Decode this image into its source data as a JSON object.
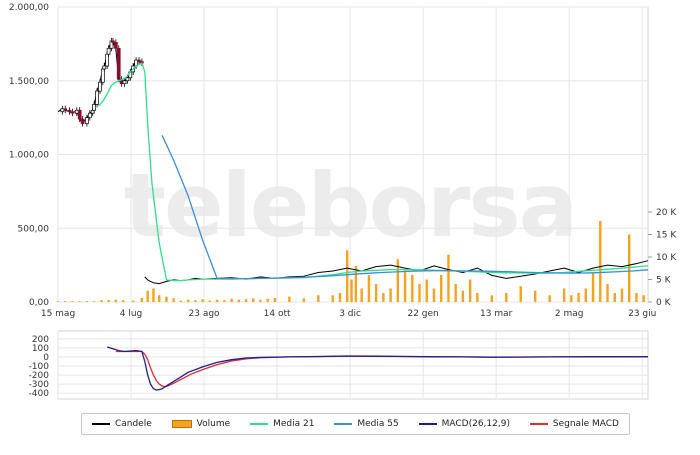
{
  "watermark": "teleborsa",
  "colors": {
    "candle_line": "#000000",
    "candle_down": "#8b0c2a",
    "volume": "#f7a21c",
    "ma21": "#2ee08a",
    "ma55": "#3a8fdb",
    "macd": "#1c1f8c",
    "signal": "#e02a36",
    "grid": "#e6e6e6",
    "watermark": "#ececec"
  },
  "chart_data": [
    {
      "type": "line",
      "panel": "price",
      "x_tick_labels": [
        "15 mag",
        "4 lug",
        "23 ago",
        "14 ott",
        "3 dic",
        "22 gen",
        "13 mar",
        "2 mag",
        "23 giu"
      ],
      "y_tick_labels": [
        "0,00",
        "500,00",
        "1.000,00",
        "1.500,00",
        "2.000,00"
      ],
      "y_ticks": [
        0,
        500,
        1000,
        1500,
        2000
      ],
      "ylim": [
        0,
        2000
      ],
      "volume_axis": {
        "tick_labels": [
          "0 K",
          "5 K",
          "10 K",
          "15 K",
          "20 K"
        ],
        "ticks": [
          0,
          5000,
          10000,
          15000,
          20000
        ],
        "ylim": [
          0,
          20000
        ]
      },
      "x_range_days": [
        0,
        408
      ],
      "grid": true,
      "series": [
        {
          "name": "Candele",
          "kind": "close",
          "x": [
            0,
            3,
            5,
            8,
            10,
            13,
            15,
            17,
            20,
            22,
            24,
            25,
            27,
            29,
            31,
            32,
            34,
            35,
            37,
            38,
            40,
            42,
            44,
            46,
            48,
            50,
            52,
            54,
            56,
            58,
            60,
            62,
            64,
            66,
            70,
            75,
            80,
            85,
            90,
            95,
            100,
            110,
            120,
            130,
            140,
            150,
            160,
            170,
            180,
            190,
            200,
            210,
            220,
            230,
            240,
            250,
            260,
            270,
            280,
            290,
            300,
            310,
            320,
            330,
            340,
            350,
            360,
            370,
            380,
            390,
            400,
            404,
            408
          ],
          "y": [
            1290,
            1310,
            1300,
            1290,
            1280,
            1300,
            1240,
            1210,
            1250,
            1280,
            1300,
            1340,
            1430,
            1490,
            1580,
            1600,
            1680,
            1720,
            1770,
            1760,
            1720,
            1510,
            1480,
            1500,
            1520,
            1560,
            1600,
            1640,
            1630,
            1620,
            170,
            150,
            140,
            130,
            125,
            140,
            150,
            145,
            150,
            160,
            155,
            160,
            165,
            155,
            170,
            160,
            170,
            175,
            200,
            210,
            230,
            210,
            240,
            250,
            230,
            210,
            245,
            220,
            200,
            230,
            180,
            160,
            175,
            190,
            210,
            230,
            200,
            230,
            250,
            240,
            260,
            270,
            280
          ]
        },
        {
          "name": "Media 21",
          "x": [
            28,
            31,
            34,
            37,
            40,
            42,
            45,
            48,
            50,
            52,
            54,
            56,
            58,
            60,
            62,
            65,
            70,
            75,
            80,
            85,
            90,
            100,
            110,
            120,
            130,
            140,
            150,
            160,
            170,
            180,
            190,
            200,
            210,
            220,
            230,
            240,
            250,
            260,
            270,
            280,
            290,
            300,
            310,
            320,
            330,
            340,
            350,
            360,
            370,
            380,
            390,
            400,
            408
          ],
          "y": [
            1330,
            1360,
            1410,
            1470,
            1490,
            1500,
            1510,
            1530,
            1560,
            1580,
            1600,
            1610,
            1620,
            1560,
            1200,
            800,
            400,
            150,
            145,
            145,
            150,
            155,
            155,
            155,
            158,
            160,
            162,
            163,
            165,
            175,
            185,
            200,
            210,
            215,
            220,
            220,
            218,
            215,
            212,
            208,
            205,
            200,
            198,
            197,
            195,
            196,
            200,
            208,
            215,
            222,
            230,
            238,
            245
          ]
        },
        {
          "name": "Media 55",
          "x": [
            72,
            80,
            90,
            100,
            110,
            120,
            130,
            140,
            150,
            160,
            170,
            180,
            190,
            200,
            210,
            220,
            230,
            240,
            250,
            260,
            270,
            280,
            290,
            300,
            310,
            320,
            330,
            340,
            350,
            360,
            370,
            380,
            390,
            400,
            408
          ],
          "y": [
            1130,
            960,
            720,
            420,
            160,
            158,
            158,
            160,
            162,
            165,
            168,
            172,
            178,
            185,
            192,
            198,
            203,
            207,
            210,
            212,
            212,
            211,
            210,
            208,
            206,
            203,
            200,
            198,
            196,
            196,
            198,
            202,
            207,
            212,
            218
          ]
        },
        {
          "name": "Volume",
          "axis": "volume",
          "x": [
            0,
            5,
            10,
            15,
            20,
            25,
            30,
            35,
            40,
            45,
            52,
            58,
            62,
            66,
            70,
            75,
            80,
            85,
            90,
            95,
            100,
            105,
            110,
            115,
            120,
            125,
            130,
            135,
            140,
            145,
            150,
            160,
            170,
            180,
            190,
            195,
            200,
            203,
            206,
            210,
            215,
            220,
            225,
            230,
            235,
            240,
            245,
            250,
            255,
            260,
            265,
            270,
            275,
            280,
            285,
            290,
            300,
            310,
            320,
            330,
            340,
            350,
            355,
            360,
            365,
            370,
            375,
            380,
            385,
            390,
            395,
            400,
            405
          ],
          "y": [
            150,
            200,
            180,
            160,
            200,
            150,
            400,
            450,
            500,
            400,
            300,
            900,
            2500,
            3000,
            1500,
            1200,
            800,
            300,
            500,
            400,
            600,
            300,
            500,
            400,
            700,
            500,
            600,
            800,
            500,
            700,
            900,
            1200,
            800,
            1500,
            1500,
            2000,
            11500,
            5000,
            8000,
            3000,
            6000,
            4000,
            2000,
            3000,
            9500,
            7000,
            6000,
            4000,
            5000,
            3000,
            6000,
            10500,
            4000,
            2500,
            5000,
            2000,
            1500,
            2000,
            3500,
            2500,
            1500,
            3000,
            1500,
            2000,
            3000,
            6500,
            18000,
            4000,
            2000,
            3000,
            15000,
            2000,
            1500
          ]
        }
      ]
    },
    {
      "type": "line",
      "panel": "macd",
      "y_tick_labels": [
        "200",
        "100",
        "0",
        "-100",
        "-200",
        "-300",
        "-400"
      ],
      "y_ticks": [
        200,
        100,
        0,
        -100,
        -200,
        -300,
        -400
      ],
      "ylim": [
        -420,
        220
      ],
      "x_range_days": [
        0,
        408
      ],
      "grid": true,
      "series": [
        {
          "name": "MACD(26,12,9)",
          "x": [
            34,
            38,
            42,
            46,
            50,
            54,
            58,
            60,
            62,
            64,
            66,
            68,
            70,
            72,
            74,
            78,
            84,
            90,
            100,
            110,
            120,
            130,
            140,
            160,
            180,
            200,
            220,
            240,
            260,
            280,
            300,
            320,
            340,
            360,
            380,
            400,
            408
          ],
          "y": [
            110,
            90,
            70,
            60,
            65,
            70,
            60,
            -50,
            -200,
            -300,
            -350,
            -365,
            -360,
            -350,
            -330,
            -290,
            -230,
            -170,
            -110,
            -60,
            -30,
            -12,
            -5,
            0,
            5,
            10,
            8,
            5,
            2,
            0,
            -3,
            -2,
            0,
            2,
            3,
            2,
            3
          ]
        },
        {
          "name": "Segnale MACD",
          "x": [
            40,
            46,
            50,
            54,
            58,
            60,
            62,
            64,
            66,
            68,
            70,
            72,
            74,
            76,
            80,
            86,
            92,
            100,
            110,
            120,
            130,
            140,
            160,
            180,
            200,
            220,
            240,
            260,
            280,
            300,
            320,
            340,
            360,
            380,
            400,
            408
          ],
          "y": [
            60,
            60,
            60,
            62,
            60,
            30,
            -30,
            -120,
            -200,
            -260,
            -300,
            -320,
            -330,
            -320,
            -290,
            -240,
            -190,
            -140,
            -85,
            -45,
            -20,
            -8,
            0,
            4,
            8,
            7,
            5,
            3,
            0,
            -2,
            -1,
            0,
            2,
            3,
            2,
            3
          ]
        }
      ]
    }
  ]
}
